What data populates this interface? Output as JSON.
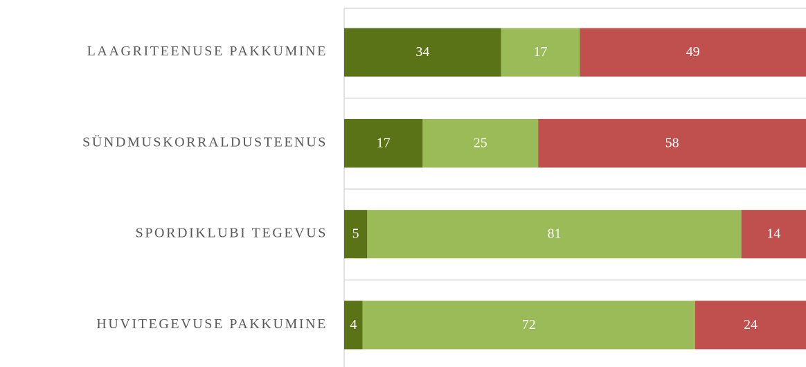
{
  "chart_data": {
    "type": "bar",
    "orientation": "horizontal",
    "stacked": true,
    "categories": [
      "LAAGRITEENUSE PAKKUMINE",
      "SÜNDMUSKORRALDUSTEENUS",
      "SPORDIKLUBI TEGEVUS",
      "HUVITEGEVUSE PAKKUMINE"
    ],
    "series": [
      {
        "color": "#5b7317",
        "values": [
          34,
          17,
          5,
          4
        ]
      },
      {
        "color": "#9bbb59",
        "values": [
          17,
          25,
          81,
          72
        ]
      },
      {
        "color": "#c0504d",
        "values": [
          49,
          58,
          14,
          24
        ]
      }
    ],
    "xlim": [
      0,
      100
    ]
  }
}
